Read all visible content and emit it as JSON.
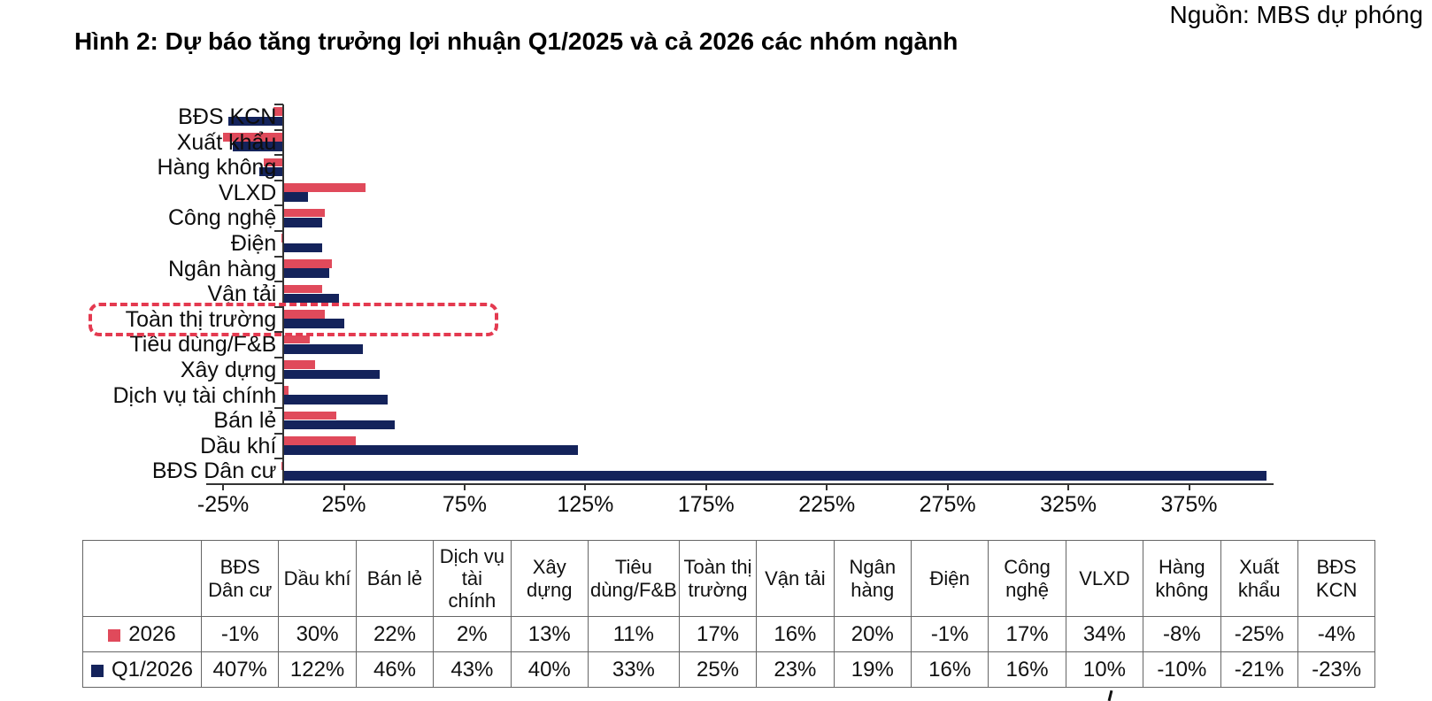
{
  "source_note": "Nguồn: MBS dự phóng",
  "title": "Hình 2: Dự báo tăng trưởng lợi nhuận Q1/2025 và cả 2026 các nhóm ngành",
  "colors": {
    "series_2026": "#E04A5B",
    "series_q1_2026": "#14235B",
    "highlight_box": "#E43A50",
    "axis": "#333333",
    "table_border": "#666666"
  },
  "chart_data": {
    "type": "bar",
    "orientation": "horizontal",
    "title": "Hình 2: Dự báo tăng trưởng lợi nhuận Q1/2025 và cả 2026 các nhóm ngành",
    "unit": "%",
    "grid": false,
    "legend_position": "table-rows-below",
    "highlighted_category": "Toàn thị trường",
    "categories": [
      "BĐS KCN",
      "Xuất khẩu",
      "Hàng không",
      "VLXD",
      "Công nghệ",
      "Điện",
      "Ngân hàng",
      "Vận tải",
      "Toàn thị trường",
      "Tiêu dùng/F&B",
      "Xây dựng",
      "Dịch vụ tài chính",
      "Bán lẻ",
      "Dầu khí",
      "BĐS Dân cư"
    ],
    "series": [
      {
        "name": "2026",
        "color": "#E04A5B",
        "values_pct": [
          -4,
          -25,
          -8,
          34,
          17,
          -1,
          20,
          16,
          17,
          11,
          13,
          2,
          22,
          30,
          -1
        ]
      },
      {
        "name": "Q1/2026",
        "color": "#14235B",
        "values_pct": [
          -23,
          -21,
          -10,
          10,
          16,
          16,
          19,
          23,
          25,
          33,
          40,
          43,
          46,
          122,
          407
        ]
      }
    ],
    "x_axis": {
      "tick_labels": [
        "-25%",
        "25%",
        "75%",
        "125%",
        "175%",
        "225%",
        "275%",
        "325%",
        "375%"
      ],
      "tick_values": [
        -25,
        25,
        75,
        125,
        175,
        225,
        275,
        325,
        375
      ],
      "range_pct": [
        -32,
        410
      ]
    }
  },
  "table": {
    "columns": [
      "BĐS Dân cư",
      "Dầu khí",
      "Bán lẻ",
      "Dịch vụ tài chính",
      "Xây dựng",
      "Tiêu dùng/F&B",
      "Toàn thị trường",
      "Vận tải",
      "Ngân hàng",
      "Điện",
      "Công nghệ",
      "VLXD",
      "Hàng không",
      "Xuất khẩu",
      "BĐS KCN"
    ],
    "rows": [
      {
        "label": "2026",
        "swatch_color": "#E04A5B",
        "values": [
          "-1%",
          "30%",
          "22%",
          "2%",
          "13%",
          "11%",
          "17%",
          "16%",
          "20%",
          "-1%",
          "17%",
          "34%",
          "-8%",
          "-25%",
          "-4%"
        ]
      },
      {
        "label": "Q1/2026",
        "swatch_color": "#14235B",
        "values": [
          "407%",
          "122%",
          "46%",
          "43%",
          "40%",
          "33%",
          "25%",
          "23%",
          "19%",
          "16%",
          "16%",
          "10%",
          "-10%",
          "-21%",
          "-23%"
        ]
      }
    ]
  }
}
